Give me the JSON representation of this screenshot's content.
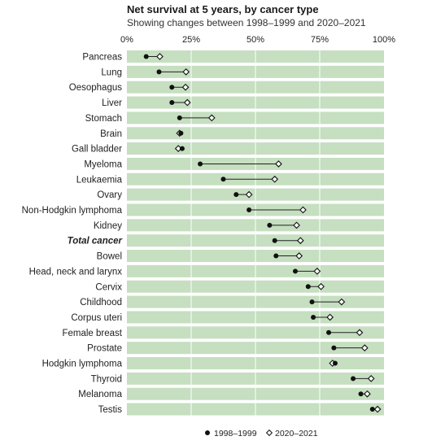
{
  "colors": {
    "band": "#c5dfc0",
    "marker": "#111111",
    "connector": "#222222",
    "text": "#222222"
  },
  "chart_data": {
    "type": "dot-plot",
    "title": "Net survival at 5 years, by cancer type",
    "subtitle": "Showing changes between 1998–1999 and 2020–2021",
    "xlim": [
      0,
      100
    ],
    "x_ticks": [
      "0%",
      "25%",
      "50%",
      "75%",
      "100%"
    ],
    "legend_placement": "bottom",
    "series": [
      {
        "name": "1998–1999",
        "marker": "filled-circle"
      },
      {
        "name": "2020–2021",
        "marker": "open-diamond"
      }
    ],
    "categories": [
      {
        "label": "Pancreas",
        "v1998": 7.5,
        "v2020": 12.8,
        "emphasis": false
      },
      {
        "label": "Lung",
        "v1998": 12.5,
        "v2020": 23.0,
        "emphasis": false
      },
      {
        "label": "Oesophagus",
        "v1998": 17.5,
        "v2020": 22.8,
        "emphasis": false
      },
      {
        "label": "Liver",
        "v1998": 17.5,
        "v2020": 23.5,
        "emphasis": false
      },
      {
        "label": "Stomach",
        "v1998": 20.5,
        "v2020": 33.0,
        "emphasis": false
      },
      {
        "label": "Brain",
        "v1998": 21.0,
        "v2020": 20.5,
        "emphasis": false
      },
      {
        "label": "Gall bladder",
        "v1998": 21.5,
        "v2020": 20.0,
        "emphasis": false
      },
      {
        "label": "Myeloma",
        "v1998": 28.5,
        "v2020": 59.0,
        "emphasis": false
      },
      {
        "label": "Leukaemia",
        "v1998": 37.5,
        "v2020": 57.5,
        "emphasis": false
      },
      {
        "label": "Ovary",
        "v1998": 42.5,
        "v2020": 47.5,
        "emphasis": false
      },
      {
        "label": "Non-Hodgkin lymphoma",
        "v1998": 47.5,
        "v2020": 68.5,
        "emphasis": false
      },
      {
        "label": "Kidney",
        "v1998": 55.5,
        "v2020": 66.0,
        "emphasis": false
      },
      {
        "label": "Total cancer",
        "v1998": 57.5,
        "v2020": 67.5,
        "emphasis": true
      },
      {
        "label": "Bowel",
        "v1998": 58.0,
        "v2020": 67.0,
        "emphasis": false
      },
      {
        "label": "Head, neck and larynx",
        "v1998": 65.5,
        "v2020": 74.0,
        "emphasis": false
      },
      {
        "label": "Cervix",
        "v1998": 70.5,
        "v2020": 75.5,
        "emphasis": false
      },
      {
        "label": "Childhood",
        "v1998": 72.0,
        "v2020": 83.5,
        "emphasis": false
      },
      {
        "label": "Corpus uteri",
        "v1998": 72.5,
        "v2020": 79.0,
        "emphasis": false
      },
      {
        "label": "Female breast",
        "v1998": 78.5,
        "v2020": 90.5,
        "emphasis": false
      },
      {
        "label": "Prostate",
        "v1998": 80.5,
        "v2020": 92.5,
        "emphasis": false
      },
      {
        "label": "Hodgkin lymphoma",
        "v1998": 81.0,
        "v2020": 80.0,
        "emphasis": false
      },
      {
        "label": "Thyroid",
        "v1998": 88.0,
        "v2020": 95.0,
        "emphasis": false
      },
      {
        "label": "Melanoma",
        "v1998": 91.0,
        "v2020": 93.5,
        "emphasis": false
      },
      {
        "label": "Testis",
        "v1998": 95.5,
        "v2020": 97.5,
        "emphasis": false
      }
    ]
  }
}
